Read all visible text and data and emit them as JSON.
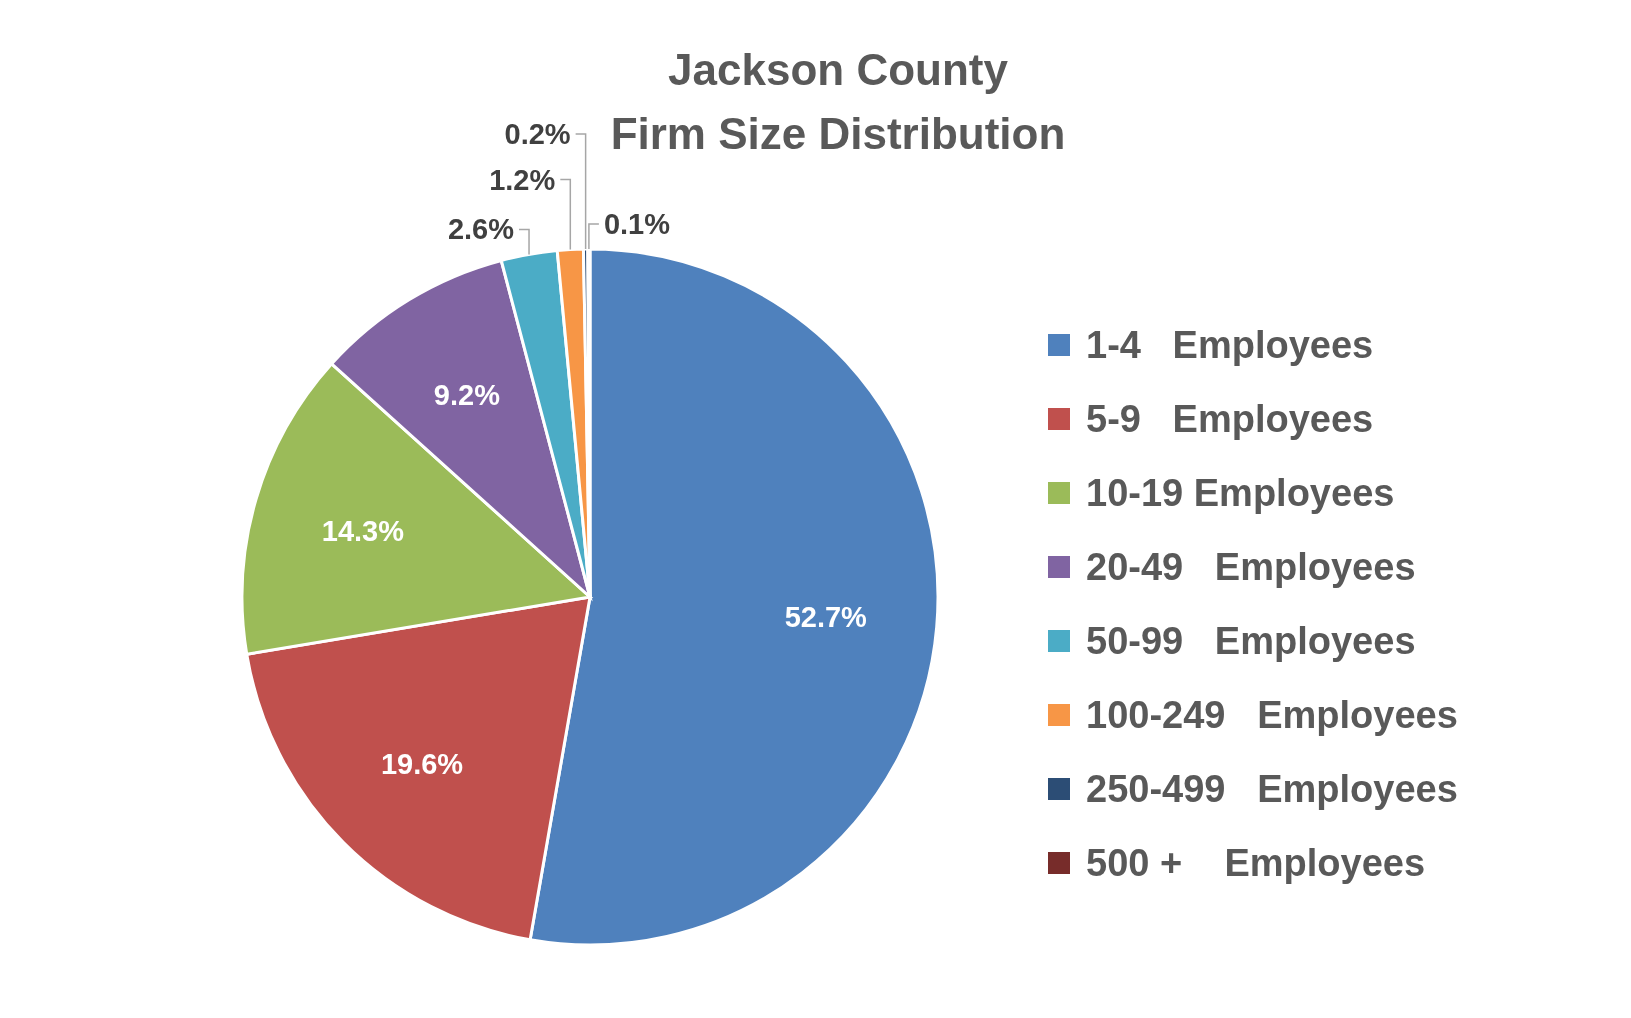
{
  "chart_data": {
    "type": "pie",
    "title": "Jackson County\nFirm Size Distribution",
    "categories": [
      "1-4   Employees",
      "5-9   Employees",
      "10-19 Employees",
      "20-49   Employees",
      "50-99   Employees",
      "100-249   Employees",
      "250-499   Employees",
      "500 +    Employees"
    ],
    "values": [
      52.7,
      19.6,
      14.3,
      9.2,
      2.6,
      1.2,
      0.2,
      0.1
    ],
    "value_labels": [
      "52.7%",
      "19.6%",
      "14.3%",
      "9.2%",
      "2.6%",
      "1.2%",
      "0.2%",
      "0.1%"
    ],
    "colors": [
      "#4f81bd",
      "#c0504d",
      "#9bbb59",
      "#8064a2",
      "#4bacc6",
      "#f79646",
      "#2c4d75",
      "#772c2a"
    ],
    "legend": "right"
  }
}
